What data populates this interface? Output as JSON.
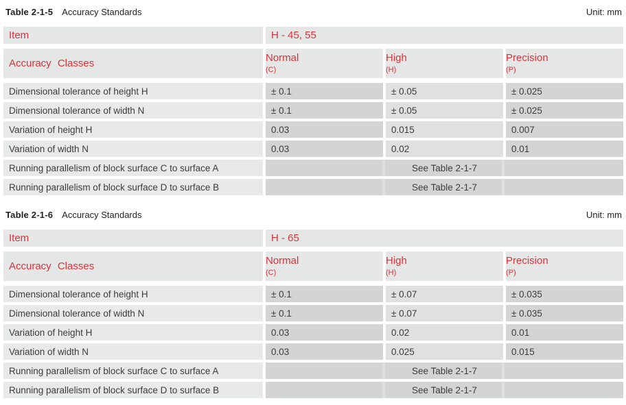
{
  "colors": {
    "accent_red": "#d8333a",
    "header_bg": "#e5e6e6",
    "label_bg": "#e8e9e9",
    "cell_dark": "#d3d5d4",
    "cell_light": "#dfe1e0",
    "text": "#3c3c3c"
  },
  "tables": [
    {
      "title_bold": "Table 2-1-5",
      "title_rest": "Accuracy Standards",
      "unit": "Unit: mm",
      "item_label": "Item",
      "item_value": "H - 45, 55",
      "classes_label": "Accuracy Classes",
      "columns": [
        {
          "name": "Normal",
          "code": "(C)"
        },
        {
          "name": "High",
          "code": "(H)"
        },
        {
          "name": "Precision",
          "code": "(P)"
        }
      ],
      "rows": [
        {
          "label": "Dimensional tolerance of height H",
          "values": [
            "± 0.1",
            "± 0.05",
            "± 0.025"
          ]
        },
        {
          "label": "Dimensional tolerance of width N",
          "values": [
            "± 0.1",
            "± 0.05",
            "± 0.025"
          ]
        },
        {
          "label": "Variation of height H",
          "values": [
            "0.03",
            "0.015",
            "0.007"
          ]
        },
        {
          "label": "Variation of width N",
          "values": [
            "0.03",
            "0.02",
            "0.01"
          ]
        }
      ],
      "merged_rows": [
        {
          "label": "Running parallelism of block surface C to surface A",
          "value": "See Table 2-1-7"
        },
        {
          "label": "Running parallelism of block surface D to surface B",
          "value": "See Table 2-1-7"
        }
      ]
    },
    {
      "title_bold": "Table 2-1-6",
      "title_rest": "Accuracy Standards",
      "unit": "Unit: mm",
      "item_label": "Item",
      "item_value": "H - 65",
      "classes_label": "Accuracy Classes",
      "columns": [
        {
          "name": "Normal",
          "code": "(C)"
        },
        {
          "name": "High",
          "code": "(H)"
        },
        {
          "name": "Precision",
          "code": "(P)"
        }
      ],
      "rows": [
        {
          "label": "Dimensional tolerance of height H",
          "values": [
            "± 0.1",
            "± 0.07",
            "± 0.035"
          ]
        },
        {
          "label": "Dimensional tolerance of width N",
          "values": [
            "± 0.1",
            "± 0.07",
            "± 0.035"
          ]
        },
        {
          "label": "Variation of height H",
          "values": [
            "0.03",
            "0.02",
            "0.01"
          ]
        },
        {
          "label": "Variation of width N",
          "values": [
            "0.03",
            "0.025",
            "0.015"
          ]
        }
      ],
      "merged_rows": [
        {
          "label": "Running parallelism of block surface C to surface A",
          "value": "See Table 2-1-7"
        },
        {
          "label": "Running parallelism of block surface D to surface B",
          "value": "See Table 2-1-7"
        }
      ]
    }
  ]
}
